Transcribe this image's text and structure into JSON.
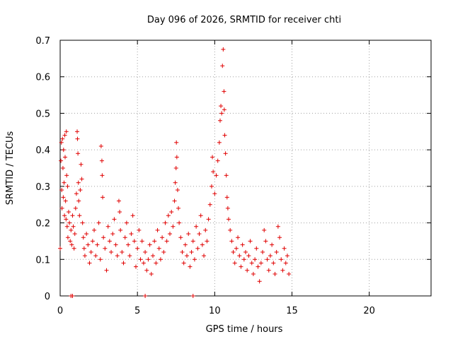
{
  "chart_data": {
    "type": "scatter",
    "title": "Day 096 of 2026, SRMTID for receiver chti",
    "xlabel": "GPS time / hours",
    "ylabel": "SRMTID / TECUs",
    "xlim": [
      0,
      24
    ],
    "ylim": [
      0,
      0.7
    ],
    "xticks": [
      0,
      5,
      10,
      15,
      20
    ],
    "yticks": [
      0,
      0.1,
      0.2,
      0.3,
      0.4,
      0.5,
      0.6,
      0.7
    ],
    "xtick_labels": [
      "0",
      "5",
      "10",
      "15",
      "20"
    ],
    "ytick_labels": [
      "0",
      "0.1",
      "0.2",
      "0.3",
      "0.4",
      "0.5",
      "0.6",
      "0.7"
    ],
    "grid": true,
    "marker": "+",
    "color": "#e00000",
    "series": [
      {
        "name": "SRMTID",
        "points": [
          [
            0.0,
            0.13
          ],
          [
            0.05,
            0.37
          ],
          [
            0.08,
            0.42
          ],
          [
            0.1,
            0.29
          ],
          [
            0.12,
            0.24
          ],
          [
            0.15,
            0.43
          ],
          [
            0.18,
            0.35
          ],
          [
            0.2,
            0.27
          ],
          [
            0.22,
            0.4
          ],
          [
            0.25,
            0.31
          ],
          [
            0.28,
            0.22
          ],
          [
            0.3,
            0.44
          ],
          [
            0.32,
            0.38
          ],
          [
            0.35,
            0.26
          ],
          [
            0.38,
            0.21
          ],
          [
            0.4,
            0.45
          ],
          [
            0.42,
            0.33
          ],
          [
            0.45,
            0.19
          ],
          [
            0.48,
            0.3
          ],
          [
            0.5,
            0.16
          ],
          [
            0.55,
            0.23
          ],
          [
            0.6,
            0.2
          ],
          [
            0.65,
            0.15
          ],
          [
            0.7,
            0.18
          ],
          [
            0.75,
            0.14
          ],
          [
            0.8,
            0.22
          ],
          [
            0.85,
            0.19
          ],
          [
            0.9,
            0.13
          ],
          [
            0.95,
            0.17
          ],
          [
            1.0,
            0.24
          ],
          [
            1.05,
            0.28
          ],
          [
            1.1,
            0.45
          ],
          [
            1.12,
            0.43
          ],
          [
            1.15,
            0.39
          ],
          [
            1.18,
            0.31
          ],
          [
            1.2,
            0.26
          ],
          [
            1.25,
            0.22
          ],
          [
            1.3,
            0.29
          ],
          [
            1.35,
            0.36
          ],
          [
            1.4,
            0.32
          ],
          [
            1.45,
            0.2
          ],
          [
            1.5,
            0.16
          ],
          [
            1.55,
            0.13
          ],
          [
            1.6,
            0.11
          ],
          [
            1.7,
            0.17
          ],
          [
            1.8,
            0.14
          ],
          [
            1.9,
            0.09
          ],
          [
            2.0,
            0.12
          ],
          [
            2.1,
            0.15
          ],
          [
            2.2,
            0.18
          ],
          [
            2.3,
            0.11
          ],
          [
            2.4,
            0.14
          ],
          [
            2.5,
            0.2
          ],
          [
            2.6,
            0.1
          ],
          [
            2.65,
            0.41
          ],
          [
            2.7,
            0.37
          ],
          [
            2.72,
            0.33
          ],
          [
            2.75,
            0.27
          ],
          [
            2.8,
            0.16
          ],
          [
            2.9,
            0.13
          ],
          [
            3.0,
            0.07
          ],
          [
            3.1,
            0.19
          ],
          [
            3.2,
            0.15
          ],
          [
            3.3,
            0.12
          ],
          [
            3.4,
            0.17
          ],
          [
            3.5,
            0.21
          ],
          [
            3.6,
            0.14
          ],
          [
            3.7,
            0.11
          ],
          [
            3.8,
            0.26
          ],
          [
            3.85,
            0.23
          ],
          [
            3.9,
            0.18
          ],
          [
            4.0,
            0.12
          ],
          [
            4.1,
            0.09
          ],
          [
            4.2,
            0.16
          ],
          [
            4.3,
            0.2
          ],
          [
            4.4,
            0.14
          ],
          [
            4.5,
            0.11
          ],
          [
            4.6,
            0.17
          ],
          [
            4.7,
            0.22
          ],
          [
            4.8,
            0.15
          ],
          [
            4.9,
            0.08
          ],
          [
            5.0,
            0.13
          ],
          [
            5.1,
            0.18
          ],
          [
            5.2,
            0.1
          ],
          [
            5.3,
            0.15
          ],
          [
            5.4,
            0.09
          ],
          [
            5.5,
            0.12
          ],
          [
            5.6,
            0.07
          ],
          [
            5.7,
            0.1
          ],
          [
            5.8,
            0.14
          ],
          [
            5.9,
            0.06
          ],
          [
            6.0,
            0.11
          ],
          [
            6.1,
            0.15
          ],
          [
            6.2,
            0.09
          ],
          [
            6.3,
            0.18
          ],
          [
            6.4,
            0.13
          ],
          [
            6.5,
            0.1
          ],
          [
            6.6,
            0.16
          ],
          [
            6.7,
            0.12
          ],
          [
            6.8,
            0.2
          ],
          [
            6.9,
            0.15
          ],
          [
            7.0,
            0.22
          ],
          [
            7.1,
            0.17
          ],
          [
            7.2,
            0.23
          ],
          [
            7.3,
            0.19
          ],
          [
            7.4,
            0.26
          ],
          [
            7.45,
            0.31
          ],
          [
            7.5,
            0.35
          ],
          [
            7.52,
            0.42
          ],
          [
            7.55,
            0.38
          ],
          [
            7.6,
            0.29
          ],
          [
            7.65,
            0.24
          ],
          [
            7.7,
            0.2
          ],
          [
            7.8,
            0.16
          ],
          [
            7.9,
            0.12
          ],
          [
            8.0,
            0.09
          ],
          [
            8.1,
            0.14
          ],
          [
            8.2,
            0.11
          ],
          [
            8.3,
            0.17
          ],
          [
            8.4,
            0.08
          ],
          [
            8.5,
            0.12
          ],
          [
            8.6,
            0.15
          ],
          [
            8.7,
            0.1
          ],
          [
            8.8,
            0.19
          ],
          [
            8.9,
            0.13
          ],
          [
            9.0,
            0.17
          ],
          [
            9.1,
            0.22
          ],
          [
            9.2,
            0.14
          ],
          [
            9.3,
            0.11
          ],
          [
            9.4,
            0.18
          ],
          [
            9.5,
            0.15
          ],
          [
            9.6,
            0.21
          ],
          [
            9.7,
            0.25
          ],
          [
            9.8,
            0.3
          ],
          [
            9.85,
            0.38
          ],
          [
            9.9,
            0.34
          ],
          [
            10.0,
            0.28
          ],
          [
            10.1,
            0.33
          ],
          [
            10.2,
            0.37
          ],
          [
            10.3,
            0.42
          ],
          [
            10.35,
            0.48
          ],
          [
            10.4,
            0.52
          ],
          [
            10.45,
            0.5
          ],
          [
            10.5,
            0.63
          ],
          [
            10.55,
            0.675
          ],
          [
            10.6,
            0.56
          ],
          [
            10.62,
            0.51
          ],
          [
            10.65,
            0.44
          ],
          [
            10.7,
            0.39
          ],
          [
            10.75,
            0.33
          ],
          [
            10.8,
            0.27
          ],
          [
            10.85,
            0.24
          ],
          [
            10.9,
            0.21
          ],
          [
            11.0,
            0.18
          ],
          [
            11.1,
            0.15
          ],
          [
            11.2,
            0.12
          ],
          [
            11.3,
            0.09
          ],
          [
            11.4,
            0.13
          ],
          [
            11.5,
            0.16
          ],
          [
            11.6,
            0.11
          ],
          [
            11.7,
            0.08
          ],
          [
            11.8,
            0.14
          ],
          [
            11.9,
            0.1
          ],
          [
            12.0,
            0.12
          ],
          [
            12.1,
            0.07
          ],
          [
            12.2,
            0.11
          ],
          [
            12.3,
            0.15
          ],
          [
            12.4,
            0.09
          ],
          [
            12.5,
            0.06
          ],
          [
            12.6,
            0.1
          ],
          [
            12.7,
            0.13
          ],
          [
            12.8,
            0.08
          ],
          [
            12.9,
            0.04
          ],
          [
            13.0,
            0.09
          ],
          [
            13.1,
            0.12
          ],
          [
            13.2,
            0.18
          ],
          [
            13.3,
            0.15
          ],
          [
            13.4,
            0.1
          ],
          [
            13.5,
            0.07
          ],
          [
            13.6,
            0.11
          ],
          [
            13.7,
            0.14
          ],
          [
            13.8,
            0.09
          ],
          [
            13.9,
            0.06
          ],
          [
            14.0,
            0.12
          ],
          [
            14.1,
            0.19
          ],
          [
            14.2,
            0.16
          ],
          [
            14.3,
            0.1
          ],
          [
            14.4,
            0.07
          ],
          [
            14.5,
            0.13
          ],
          [
            14.6,
            0.09
          ],
          [
            14.7,
            0.11
          ],
          [
            14.8,
            0.06
          ],
          [
            0.7,
            0.0
          ],
          [
            0.8,
            0.0
          ],
          [
            5.5,
            0.0
          ],
          [
            8.6,
            0.0
          ]
        ]
      }
    ]
  }
}
